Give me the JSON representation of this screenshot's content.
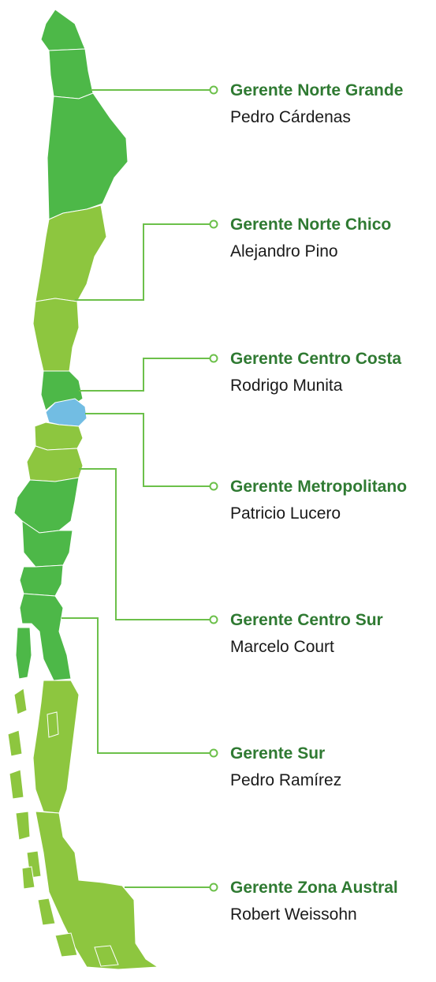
{
  "managers": [
    {
      "title": "Gerente Norte Grande",
      "name": "Pedro Cárdenas"
    },
    {
      "title": "Gerente Norte Chico",
      "name": "Alejandro Pino"
    },
    {
      "title": "Gerente Centro Costa",
      "name": "Rodrigo Munita"
    },
    {
      "title": "Gerente Metropolitano",
      "name": "Patricio Lucero"
    },
    {
      "title": "Gerente Centro Sur",
      "name": "Marcelo Court"
    },
    {
      "title": "Gerente Sur",
      "name": "Pedro Ramírez"
    },
    {
      "title": "Gerente Zona Austral",
      "name": "Robert Weissohn"
    }
  ]
}
